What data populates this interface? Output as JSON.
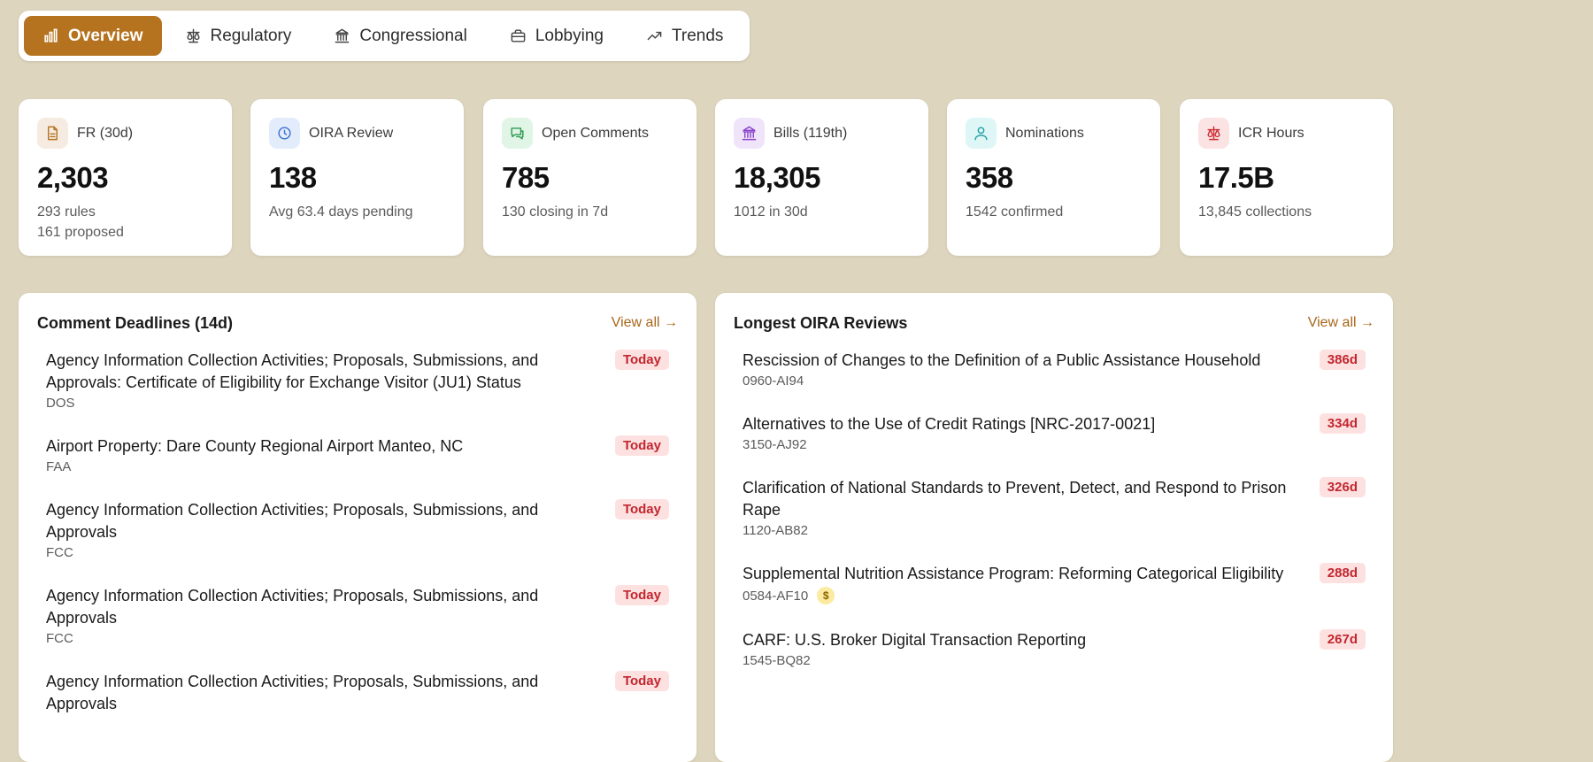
{
  "tabs": [
    {
      "label": "Overview",
      "icon": "bar-chart-icon",
      "active": true
    },
    {
      "label": "Regulatory",
      "icon": "scale-icon"
    },
    {
      "label": "Congressional",
      "icon": "capitol-icon"
    },
    {
      "label": "Lobbying",
      "icon": "briefcase-icon"
    },
    {
      "label": "Trends",
      "icon": "trending-up-icon"
    }
  ],
  "stats": [
    {
      "label": "FR (30d)",
      "value": "2,303",
      "sub": "293 rules",
      "sub2": "161 proposed",
      "icon": "document-icon",
      "color": "#f5ebe0",
      "icon_color": "#b5721f"
    },
    {
      "label": "OIRA Review",
      "value": "138",
      "sub": "Avg 63.4 days pending",
      "icon": "clock-icon",
      "color": "#e3ecfb",
      "icon_color": "#3b6fd4"
    },
    {
      "label": "Open Comments",
      "value": "785",
      "sub": "130 closing in 7d",
      "icon": "chat-icon",
      "color": "#e0f5e6",
      "icon_color": "#2f9a52"
    },
    {
      "label": "Bills (119th)",
      "value": "18,305",
      "sub": "1012 in 30d",
      "icon": "capitol-icon",
      "color": "#efe4fa",
      "icon_color": "#8b43c9"
    },
    {
      "label": "Nominations",
      "value": "358",
      "sub": "1542 confirmed",
      "icon": "person-icon",
      "color": "#dff6f6",
      "icon_color": "#1f9fa6"
    },
    {
      "label": "ICR Hours",
      "value": "17.5B",
      "sub": "13,845 collections",
      "icon": "scale-icon",
      "color": "#fbe3e3",
      "icon_color": "#cc2e36"
    }
  ],
  "comments": {
    "title": "Comment Deadlines (14d)",
    "view_all": "View all →",
    "items": [
      {
        "title": "Agency Information Collection Activities; Proposals, Submissions, and Approvals: Certificate of Eligibility for Exchange Visitor (JU1) Status",
        "agency": "DOS",
        "badge": "Today"
      },
      {
        "title": "Airport Property: Dare County Regional Airport Manteo, NC",
        "agency": "FAA",
        "badge": "Today"
      },
      {
        "title": "Agency Information Collection Activities; Proposals, Submissions, and Approvals",
        "agency": "FCC",
        "badge": "Today"
      },
      {
        "title": "Agency Information Collection Activities; Proposals, Submissions, and Approvals",
        "agency": "FCC",
        "badge": "Today"
      },
      {
        "title": "Agency Information Collection Activities; Proposals, Submissions, and Approvals",
        "agency": "",
        "badge": "Today"
      }
    ]
  },
  "oira": {
    "title": "Longest OIRA Reviews",
    "view_all": "View all →",
    "items": [
      {
        "title": "Rescission of Changes to the Definition of a Public Assistance Household",
        "rin": "0960-AI94",
        "badge": "386d"
      },
      {
        "title": "Alternatives to the Use of Credit Ratings [NRC-2017-0021]",
        "rin": "3150-AJ92",
        "badge": "334d"
      },
      {
        "title": "Clarification of National Standards to Prevent, Detect, and Respond to Prison Rape",
        "rin": "1120-AB82",
        "badge": "326d"
      },
      {
        "title": "Supplemental Nutrition Assistance Program: Reforming Categorical Eligibility",
        "rin": "0584-AF10",
        "badge": "288d",
        "dollar": "$"
      },
      {
        "title": "CARF: U.S. Broker Digital Transaction Reporting",
        "rin": "1545-BQ82",
        "badge": "267d"
      }
    ]
  }
}
